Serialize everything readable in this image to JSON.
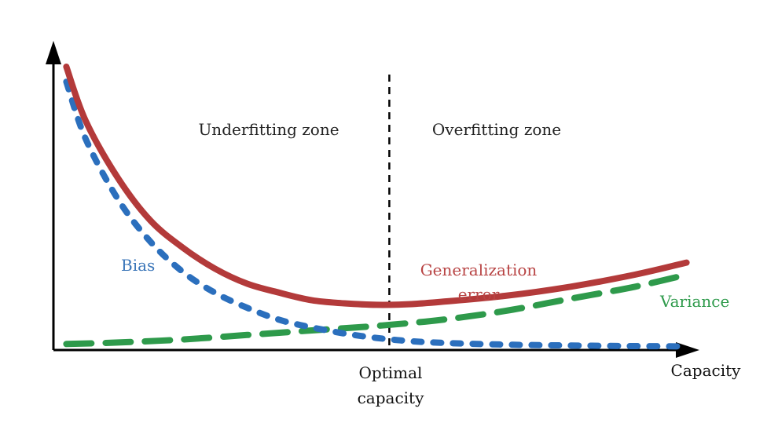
{
  "chart_data": {
    "type": "line",
    "title": "",
    "xlabel": "Capacity",
    "ylabel": "",
    "xlim": [
      0,
      1
    ],
    "ylim": [
      0,
      1
    ],
    "grid": false,
    "legend": "none (series are labelled directly on the curves)",
    "optimal_capacity": {
      "x": 0.52,
      "label_line1": "Optimal",
      "label_line2": "capacity"
    },
    "zones": [
      {
        "label": "Underfitting zone"
      },
      {
        "label": "Overfitting zone"
      }
    ],
    "series": [
      {
        "name": "Bias",
        "label": "Bias",
        "color": "#2b6fbd",
        "style": "dotted",
        "x": [
          0.02,
          0.05,
          0.1,
          0.15,
          0.2,
          0.25,
          0.3,
          0.35,
          0.4,
          0.45,
          0.5,
          0.55,
          0.6,
          0.7,
          0.8,
          0.9,
          0.98
        ],
        "y": [
          0.89,
          0.7,
          0.5,
          0.36,
          0.26,
          0.19,
          0.14,
          0.1,
          0.075,
          0.055,
          0.04,
          0.03,
          0.024,
          0.018,
          0.015,
          0.013,
          0.012
        ]
      },
      {
        "name": "Generalization error",
        "label_line1": "Generalization",
        "label_line2": "error",
        "color": "#b33a3a",
        "style": "solid",
        "x": [
          0.02,
          0.05,
          0.1,
          0.15,
          0.2,
          0.25,
          0.3,
          0.35,
          0.4,
          0.45,
          0.5,
          0.55,
          0.6,
          0.7,
          0.8,
          0.9,
          0.98
        ],
        "y": [
          0.94,
          0.76,
          0.57,
          0.43,
          0.34,
          0.27,
          0.22,
          0.19,
          0.165,
          0.155,
          0.15,
          0.152,
          0.16,
          0.18,
          0.21,
          0.25,
          0.29
        ]
      },
      {
        "name": "Variance",
        "label": "Variance",
        "color": "#2e9a4b",
        "style": "dashed",
        "x": [
          0.02,
          0.1,
          0.2,
          0.3,
          0.4,
          0.5,
          0.6,
          0.7,
          0.8,
          0.9,
          0.98
        ],
        "y": [
          0.02,
          0.025,
          0.035,
          0.05,
          0.065,
          0.08,
          0.1,
          0.13,
          0.17,
          0.21,
          0.25
        ]
      }
    ]
  }
}
